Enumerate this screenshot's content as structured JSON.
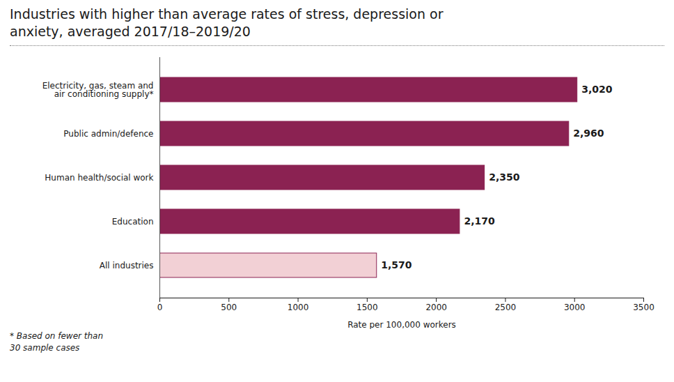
{
  "chart_data": {
    "type": "bar",
    "orientation": "horizontal",
    "title": "Industries with higher than average rates of stress, depression or\nanxiety, averaged 2017/18–2019/20",
    "categories": [
      "All industries",
      "Education",
      "Human health/social work",
      "Public admin/defence",
      "Electricity, gas, steam and\nair conditioning supply*"
    ],
    "values": [
      1570,
      2170,
      2350,
      2960,
      3020
    ],
    "value_labels": [
      "1,570",
      "2,170",
      "2,350",
      "2,960",
      "3,020"
    ],
    "data_labels": true,
    "colors": [
      "#f2d0d5",
      "#8b2252",
      "#8b2252",
      "#8b2252",
      "#8b2252"
    ],
    "color": "#8b2252",
    "xlabel": "Rate per 100,000 workers",
    "xlim": [
      0,
      3500
    ],
    "xticks": [
      0,
      500,
      1000,
      1500,
      2000,
      2500,
      3000,
      3500
    ],
    "grid": false,
    "annotations": [
      "* Based on fewer than\n30 sample cases"
    ]
  }
}
